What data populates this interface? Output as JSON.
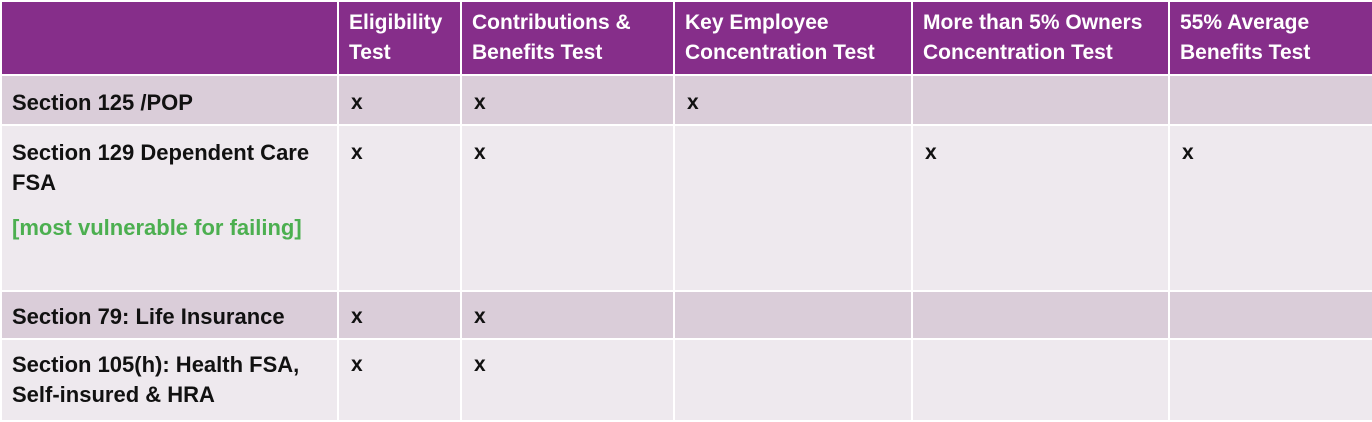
{
  "headers": [
    "",
    "Eligibility Test",
    "Contributions & Benefits Test",
    "Key Employee Concentration Test",
    "More than 5% Owners Concentration Test",
    "55% Average Benefits Test"
  ],
  "rows": [
    {
      "label": "Section 125 /POP",
      "note": "",
      "cells": [
        "x",
        "x",
        "x",
        "",
        ""
      ]
    },
    {
      "label": "Section 129 Dependent Care FSA",
      "note": "[most vulnerable for failing]",
      "cells": [
        "x",
        "x",
        "",
        "x",
        "x"
      ]
    },
    {
      "label": "Section 79: Life Insurance",
      "note": "",
      "cells": [
        "x",
        "x",
        "",
        "",
        ""
      ]
    },
    {
      "label": "Section 105(h):  Health FSA, Self-insured &  HRA",
      "note": "",
      "cells": [
        "x",
        "x",
        "",
        "",
        ""
      ]
    }
  ]
}
